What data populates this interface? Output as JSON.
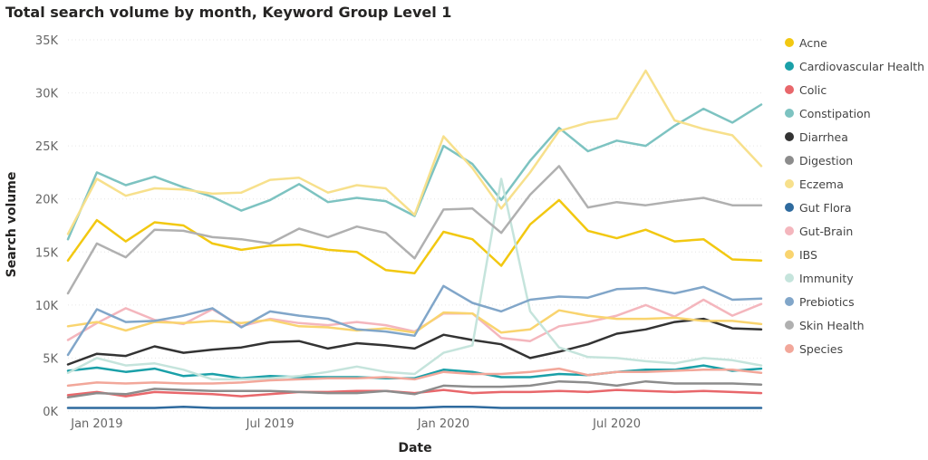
{
  "chart_data": {
    "type": "line",
    "title": "Total search volume by month, Keyword Group Level 1",
    "xlabel": "Date",
    "ylabel": "Search volume",
    "ylim": [
      0,
      35000
    ],
    "yticks": [
      {
        "value": 0,
        "label": "0K"
      },
      {
        "value": 5000,
        "label": "5K"
      },
      {
        "value": 10000,
        "label": "10K"
      },
      {
        "value": 15000,
        "label": "15K"
      },
      {
        "value": 20000,
        "label": "20K"
      },
      {
        "value": 25000,
        "label": "25K"
      },
      {
        "value": 30000,
        "label": "30K"
      },
      {
        "value": 35000,
        "label": "35K"
      }
    ],
    "x": [
      "2018-12",
      "2019-01",
      "2019-02",
      "2019-03",
      "2019-04",
      "2019-05",
      "2019-06",
      "2019-07",
      "2019-08",
      "2019-09",
      "2019-10",
      "2019-11",
      "2019-12",
      "2020-01",
      "2020-02",
      "2020-03",
      "2020-04",
      "2020-05",
      "2020-06",
      "2020-07",
      "2020-08",
      "2020-09",
      "2020-10",
      "2020-11",
      "2020-12"
    ],
    "xticks": [
      {
        "x": "2019-01",
        "label": "Jan 2019"
      },
      {
        "x": "2019-07",
        "label": "Jul 2019"
      },
      {
        "x": "2020-01",
        "label": "Jan 2020"
      },
      {
        "x": "2020-07",
        "label": "Jul 2020"
      }
    ],
    "grid": true,
    "legend_position": "right",
    "series": [
      {
        "name": "Acne",
        "color": "#F2C811",
        "values": [
          14200,
          18000,
          16000,
          17800,
          17500,
          15800,
          15200,
          15600,
          15700,
          15200,
          15000,
          13300,
          13000,
          16900,
          16200,
          13700,
          17600,
          19900,
          17000,
          16300,
          17100,
          16000,
          16200,
          14300,
          14200
        ]
      },
      {
        "name": "Cardiovascular Health",
        "color": "#1AA0A8",
        "values": [
          3800,
          4100,
          3700,
          4000,
          3300,
          3500,
          3100,
          3300,
          3200,
          3200,
          3200,
          3100,
          3100,
          3900,
          3700,
          3200,
          3200,
          3500,
          3400,
          3700,
          3900,
          3900,
          4300,
          3800,
          4000
        ]
      },
      {
        "name": "Colic",
        "color": "#E8676B",
        "values": [
          1500,
          1800,
          1400,
          1800,
          1700,
          1600,
          1400,
          1600,
          1800,
          1800,
          1900,
          1900,
          1700,
          2000,
          1700,
          1800,
          1800,
          1900,
          1800,
          2000,
          1900,
          1800,
          1900,
          1800,
          1700
        ]
      },
      {
        "name": "Constipation",
        "color": "#7DC3C1",
        "values": [
          16200,
          22500,
          21300,
          22100,
          21100,
          20200,
          18900,
          19900,
          21400,
          19700,
          20100,
          19800,
          18400,
          25000,
          23300,
          19900,
          23600,
          26700,
          24500,
          25500,
          25000,
          26900,
          28500,
          27200,
          28900
        ]
      },
      {
        "name": "Diarrhea",
        "color": "#333333",
        "values": [
          4400,
          5400,
          5200,
          6100,
          5500,
          5800,
          6000,
          6500,
          6600,
          5900,
          6400,
          6200,
          5900,
          7200,
          6700,
          6300,
          5000,
          5600,
          6300,
          7300,
          7700,
          8400,
          8700,
          7800,
          7700
        ]
      },
      {
        "name": "Digestion",
        "color": "#8C8C8C",
        "values": [
          1300,
          1700,
          1600,
          2100,
          2000,
          1900,
          1900,
          1900,
          1800,
          1700,
          1700,
          1900,
          1600,
          2400,
          2300,
          2300,
          2400,
          2800,
          2700,
          2400,
          2800,
          2600,
          2600,
          2600,
          2500
        ]
      },
      {
        "name": "Eczema",
        "color": "#F7E08C",
        "values": [
          16700,
          21900,
          20300,
          21000,
          20900,
          20500,
          20600,
          21800,
          22000,
          20600,
          21300,
          21000,
          18500,
          25900,
          22900,
          19100,
          22500,
          26400,
          27200,
          27600,
          32100,
          27400,
          26600,
          26000,
          23100
        ]
      },
      {
        "name": "Gut Flora",
        "color": "#2E6A9E",
        "values": [
          300,
          300,
          300,
          300,
          400,
          300,
          300,
          300,
          300,
          300,
          300,
          300,
          300,
          400,
          400,
          300,
          300,
          300,
          300,
          300,
          300,
          300,
          300,
          300,
          300
        ]
      },
      {
        "name": "Gut-Brain",
        "color": "#F4B6BD",
        "values": [
          6700,
          8300,
          9700,
          8600,
          8200,
          9600,
          8000,
          8700,
          8300,
          8100,
          8400,
          8100,
          7500,
          9200,
          9200,
          6900,
          6600,
          8000,
          8400,
          9000,
          10000,
          8900,
          10500,
          9000,
          10100
        ]
      },
      {
        "name": "IBS",
        "color": "#F9D46F",
        "values": [
          8000,
          8400,
          7600,
          8400,
          8300,
          8500,
          8300,
          8600,
          8000,
          7900,
          7600,
          7800,
          7400,
          9300,
          9200,
          7400,
          7700,
          9500,
          9000,
          8700,
          8700,
          8800,
          8500,
          8500,
          8200
        ]
      },
      {
        "name": "Immunity",
        "color": "#C5E4DC",
        "values": [
          3600,
          5000,
          4300,
          4500,
          3900,
          3000,
          3000,
          3100,
          3300,
          3700,
          4200,
          3700,
          3500,
          5500,
          6200,
          21900,
          9400,
          6000,
          5100,
          5000,
          4700,
          4500,
          5000,
          4800,
          4300
        ]
      },
      {
        "name": "Prebiotics",
        "color": "#81A6C9",
        "values": [
          5300,
          9600,
          8400,
          8500,
          9000,
          9700,
          7900,
          9400,
          9000,
          8700,
          7700,
          7500,
          7100,
          11800,
          10200,
          9400,
          10500,
          10800,
          10700,
          11500,
          11600,
          11100,
          11700,
          10500,
          10600
        ]
      },
      {
        "name": "Skin Health",
        "color": "#B0B0B0",
        "values": [
          11100,
          15800,
          14500,
          17100,
          17000,
          16400,
          16200,
          15800,
          17200,
          16400,
          17400,
          16800,
          14400,
          19000,
          19100,
          16800,
          20400,
          23100,
          19200,
          19700,
          19400,
          19800,
          20100,
          19400,
          19400
        ]
      },
      {
        "name": "Species",
        "color": "#F2A79A",
        "values": [
          2400,
          2700,
          2600,
          2700,
          2600,
          2600,
          2700,
          2900,
          3000,
          3100,
          3100,
          3200,
          3000,
          3700,
          3500,
          3500,
          3700,
          4000,
          3400,
          3700,
          3700,
          3800,
          3900,
          3900,
          3600
        ]
      }
    ]
  }
}
